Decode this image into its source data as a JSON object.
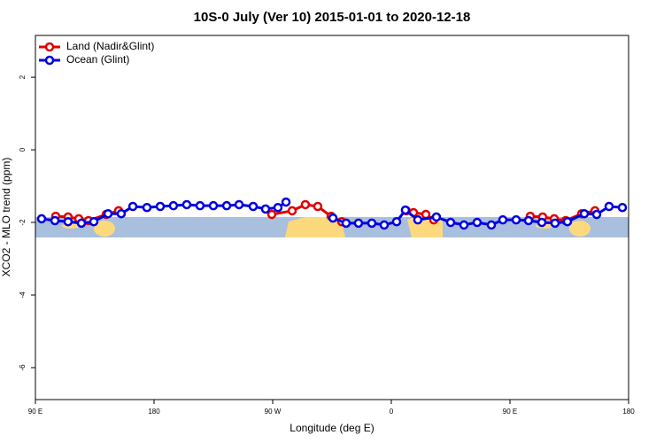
{
  "chart_data": {
    "type": "line",
    "title": "10S-0 July (Ver 10)   2015-01-01 to 2020-12-18",
    "x_label": "Longitude (deg E)",
    "y_label": "XCO2 - MLO trend (ppm)",
    "xlim": [
      90,
      540
    ],
    "xticks": [
      {
        "value": 90,
        "label": "90 E"
      },
      180,
      {
        "value": 270,
        "label": "90 W"
      },
      {
        "value": 360,
        "label": "0"
      },
      {
        "value": 450,
        "label": "90 E"
      },
      {
        "value": 540,
        "label": "180"
      }
    ],
    "ylim": [
      -6.88,
      3.15
    ],
    "yticks": [
      2,
      0,
      -2,
      -4,
      -6
    ],
    "legend": "topleft",
    "series": [
      {
        "name": "Land (Nadir&Glint)",
        "color": "#e00000",
        "x": [
          105.4,
          114.8,
          122.9,
          130.3,
          143.7,
          153.1,
          null,
          269.3,
          284.8,
          294.8,
          304.2,
          314.3,
          322.4,
          null,
          371.4,
          376.8,
          386.2,
          392.2,
          null,
          465.4,
          474.8,
          483.6,
          492.3,
          504.4,
          514.5
        ],
        "values": [
          -1.83,
          -1.85,
          -1.9,
          -1.95,
          -1.78,
          -1.68,
          null,
          -1.78,
          -1.68,
          -1.51,
          -1.56,
          -1.83,
          -1.98,
          null,
          -1.68,
          -1.73,
          -1.78,
          -1.93,
          null,
          -1.83,
          -1.85,
          -1.9,
          -1.95,
          -1.76,
          -1.68
        ]
      },
      {
        "name": "Ocean (Glint)",
        "color": "#0000e0",
        "x": [
          94.7,
          104.8,
          114.8,
          124.9,
          134.3,
          145.1,
          155.1,
          163.9,
          174.6,
          184.7,
          194.7,
          204.8,
          214.9,
          225.0,
          235.1,
          244.5,
          255.2,
          264.6,
          274.0,
          280.1,
          null,
          315.7,
          325.7,
          335.1,
          345.2,
          354.6,
          364.0,
          370.7,
          380.1,
          394.2,
          405.0,
          415.1,
          425.1,
          435.9,
          444.6,
          454.7,
          464.1,
          474.2,
          484.2,
          493.6,
          506.4,
          515.8,
          525.2,
          535.3
        ],
        "values": [
          -1.9,
          -1.95,
          -1.98,
          -2.02,
          -1.98,
          -1.76,
          -1.76,
          -1.56,
          -1.59,
          -1.56,
          -1.54,
          -1.51,
          -1.54,
          -1.54,
          -1.54,
          -1.51,
          -1.56,
          -1.63,
          -1.59,
          -1.44,
          null,
          -1.88,
          -2.02,
          -2.02,
          -2.02,
          -2.07,
          -1.98,
          -1.66,
          -1.93,
          -1.85,
          -2.0,
          -2.07,
          -2.0,
          -2.07,
          -1.93,
          -1.93,
          -1.95,
          -2.0,
          -2.02,
          -1.98,
          -1.76,
          -1.78,
          -1.56,
          -1.59
        ]
      }
    ]
  }
}
